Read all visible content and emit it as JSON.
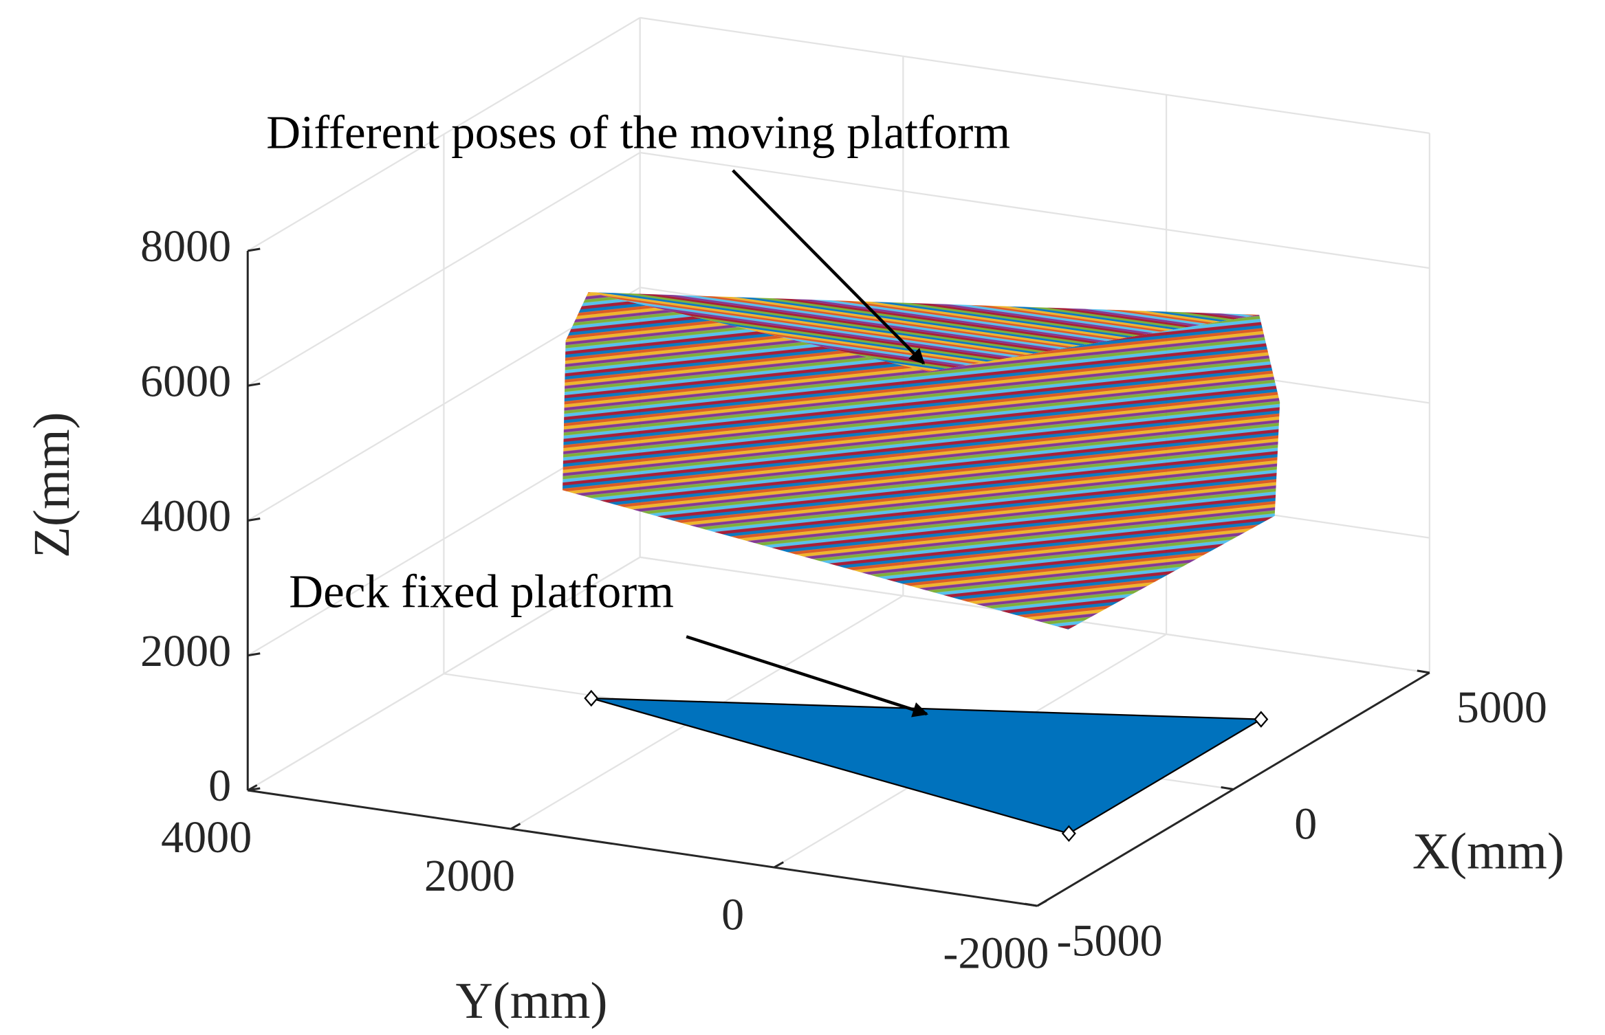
{
  "chart_data": {
    "type": "polygon3d",
    "annotations": [
      {
        "text": "Different poses of the moving platform"
      },
      {
        "text": "Deck fixed platform"
      }
    ],
    "xlabel": "X(mm)",
    "ylabel": "Y(mm)",
    "zlabel": "Z(mm)",
    "xlim": [
      -5000,
      5000
    ],
    "xticks": [
      -5000,
      0,
      5000
    ],
    "ylim": [
      -2000,
      4000
    ],
    "yticks": [
      -2000,
      0,
      2000,
      4000
    ],
    "zlim": [
      0,
      8000
    ],
    "zticks": [
      0,
      2000,
      4000,
      6000,
      8000
    ],
    "grid": true,
    "platform": {
      "color": "#0072bd",
      "x": [
        -100,
        2550,
        -2350
      ],
      "y": [
        2850,
        -1450,
        -1450
      ],
      "z": [
        0,
        0,
        0
      ]
    }
  }
}
